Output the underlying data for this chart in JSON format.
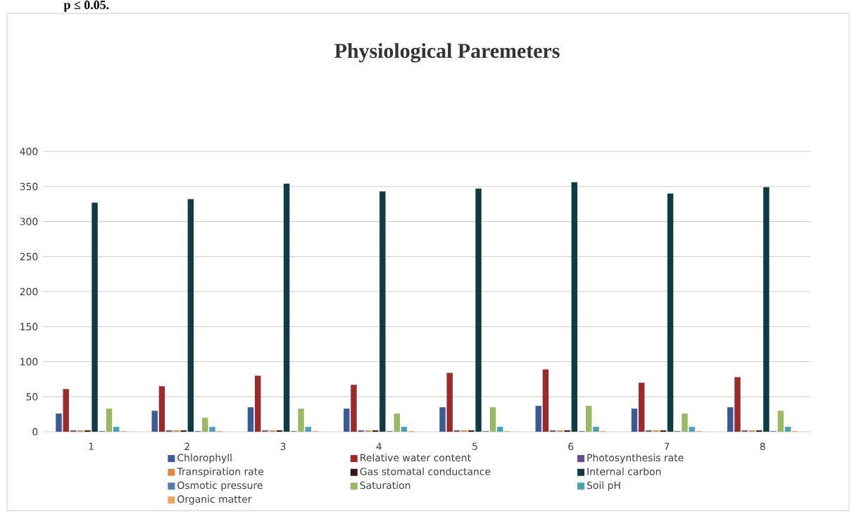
{
  "chart_data": {
    "type": "bar",
    "title": "Physiological Paremeters",
    "annotations": [
      "p ≤ 0.05."
    ],
    "categories": [
      "1",
      "2",
      "3",
      "4",
      "5",
      "6",
      "7",
      "8"
    ],
    "series": [
      {
        "name": "Chlorophyll",
        "color": "#3a5a98",
        "values": [
          26,
          30,
          35,
          33,
          35,
          37,
          33,
          35
        ]
      },
      {
        "name": "Relative water content",
        "color": "#9b2b2b",
        "values": [
          61,
          65,
          80,
          67,
          84,
          89,
          70,
          78
        ]
      },
      {
        "name": "Photosynthesis rate",
        "color": "#6b4a8f",
        "values": [
          2,
          2,
          2,
          2,
          2,
          2,
          2,
          2
        ]
      },
      {
        "name": "Transpiration rate",
        "color": "#e08a3c",
        "values": [
          2,
          2,
          2,
          2,
          2,
          2,
          2,
          2
        ]
      },
      {
        "name": "Gas stomatal conductance",
        "color": "#2d1a10",
        "values": [
          2,
          2,
          2,
          2,
          2,
          2,
          2,
          2
        ]
      },
      {
        "name": "Internal carbon",
        "color": "#0f3b45",
        "values": [
          327,
          332,
          354,
          343,
          347,
          356,
          340,
          349
        ]
      },
      {
        "name": "Osmotic pressure",
        "color": "#4f7fa8",
        "values": [
          1,
          1,
          1,
          1,
          1,
          1,
          1,
          1
        ]
      },
      {
        "name": "Saturation",
        "color": "#9bb864",
        "values": [
          33,
          20,
          33,
          26,
          35,
          37,
          26,
          30
        ]
      },
      {
        "name": "Soil pH",
        "color": "#4aa3b0",
        "values": [
          7,
          7,
          7,
          7,
          7,
          7,
          7,
          7
        ]
      },
      {
        "name": "Organic matter",
        "color": "#f0a860",
        "values": [
          1,
          1,
          1,
          1,
          1,
          1,
          1,
          1
        ]
      }
    ],
    "ylim": [
      0,
      400
    ],
    "yticks": [
      0,
      50,
      100,
      150,
      200,
      250,
      300,
      350,
      400
    ],
    "grid": "y",
    "legend": "bottom"
  }
}
